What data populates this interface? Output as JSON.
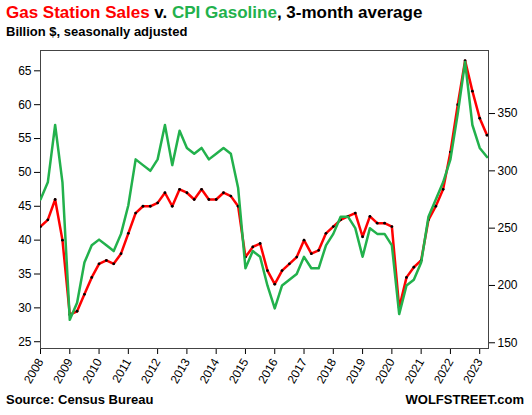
{
  "chart_data": {
    "type": "line",
    "title": "Gas Station Sales v. CPI Gasoline, 3-month average",
    "subtitle": "Billion $, seasonally adjusted",
    "caption": "Source: Census Bureau",
    "credit": "WOLFSTREET.com",
    "grid": false,
    "x": [
      2008,
      2008.25,
      2008.5,
      2008.75,
      2009,
      2009.25,
      2009.5,
      2009.75,
      2010,
      2010.25,
      2010.5,
      2010.75,
      2011,
      2011.25,
      2011.5,
      2011.75,
      2012,
      2012.25,
      2012.5,
      2012.75,
      2013,
      2013.25,
      2013.5,
      2013.75,
      2014,
      2014.25,
      2014.5,
      2014.75,
      2015,
      2015.25,
      2015.5,
      2015.75,
      2016,
      2016.25,
      2016.5,
      2016.75,
      2017,
      2017.25,
      2017.5,
      2017.75,
      2018,
      2018.25,
      2018.5,
      2018.75,
      2019,
      2019.25,
      2019.5,
      2019.75,
      2020,
      2020.25,
      2020.5,
      2020.75,
      2021,
      2021.25,
      2021.5,
      2021.75,
      2022,
      2022.25,
      2022.5,
      2022.75,
      2023,
      2023.25
    ],
    "xlim": [
      2008,
      2023.3
    ],
    "xticks": [
      2008,
      2009,
      2010,
      2011,
      2012,
      2013,
      2014,
      2015,
      2016,
      2017,
      2018,
      2019,
      2020,
      2021,
      2022,
      2023
    ],
    "ylim": [
      24,
      68
    ],
    "yticks": [
      25,
      30,
      35,
      40,
      45,
      50,
      55,
      60,
      65
    ],
    "y2lim": [
      145,
      405
    ],
    "y2ticks": [
      150,
      200,
      250,
      300,
      350
    ],
    "series": [
      {
        "name": "Gas Station Sales",
        "color": "#ff0000",
        "marker": "dot",
        "values": [
          42,
          43,
          46,
          40,
          29,
          29.5,
          32,
          34.5,
          36.5,
          37,
          36.5,
          38,
          41,
          44,
          45,
          45,
          45.5,
          47,
          45,
          47.5,
          47,
          46,
          47.5,
          46,
          46,
          47,
          46.5,
          45,
          37.5,
          39,
          39.5,
          35.5,
          33.5,
          35.5,
          36.5,
          37.5,
          40,
          38,
          38.5,
          41,
          42,
          43,
          43.5,
          44,
          40.5,
          43.5,
          42.5,
          42.5,
          42,
          30,
          34.5,
          36,
          37,
          43,
          45,
          47.5,
          53,
          60,
          66.5,
          62,
          58,
          55.5
        ]
      },
      {
        "name": "CPI Gasoline",
        "color": "#22b14c",
        "axis": "y2",
        "values": [
          275,
          290,
          340,
          290,
          170,
          185,
          220,
          235,
          240,
          235,
          230,
          245,
          270,
          310,
          305,
          300,
          310,
          340,
          305,
          335,
          320,
          315,
          320,
          310,
          315,
          320,
          315,
          285,
          215,
          230,
          225,
          200,
          180,
          200,
          205,
          210,
          225,
          215,
          215,
          235,
          245,
          260,
          260,
          250,
          225,
          250,
          245,
          245,
          235,
          175,
          200,
          205,
          220,
          260,
          275,
          290,
          310,
          350,
          395,
          340,
          320,
          312
        ]
      }
    ]
  }
}
